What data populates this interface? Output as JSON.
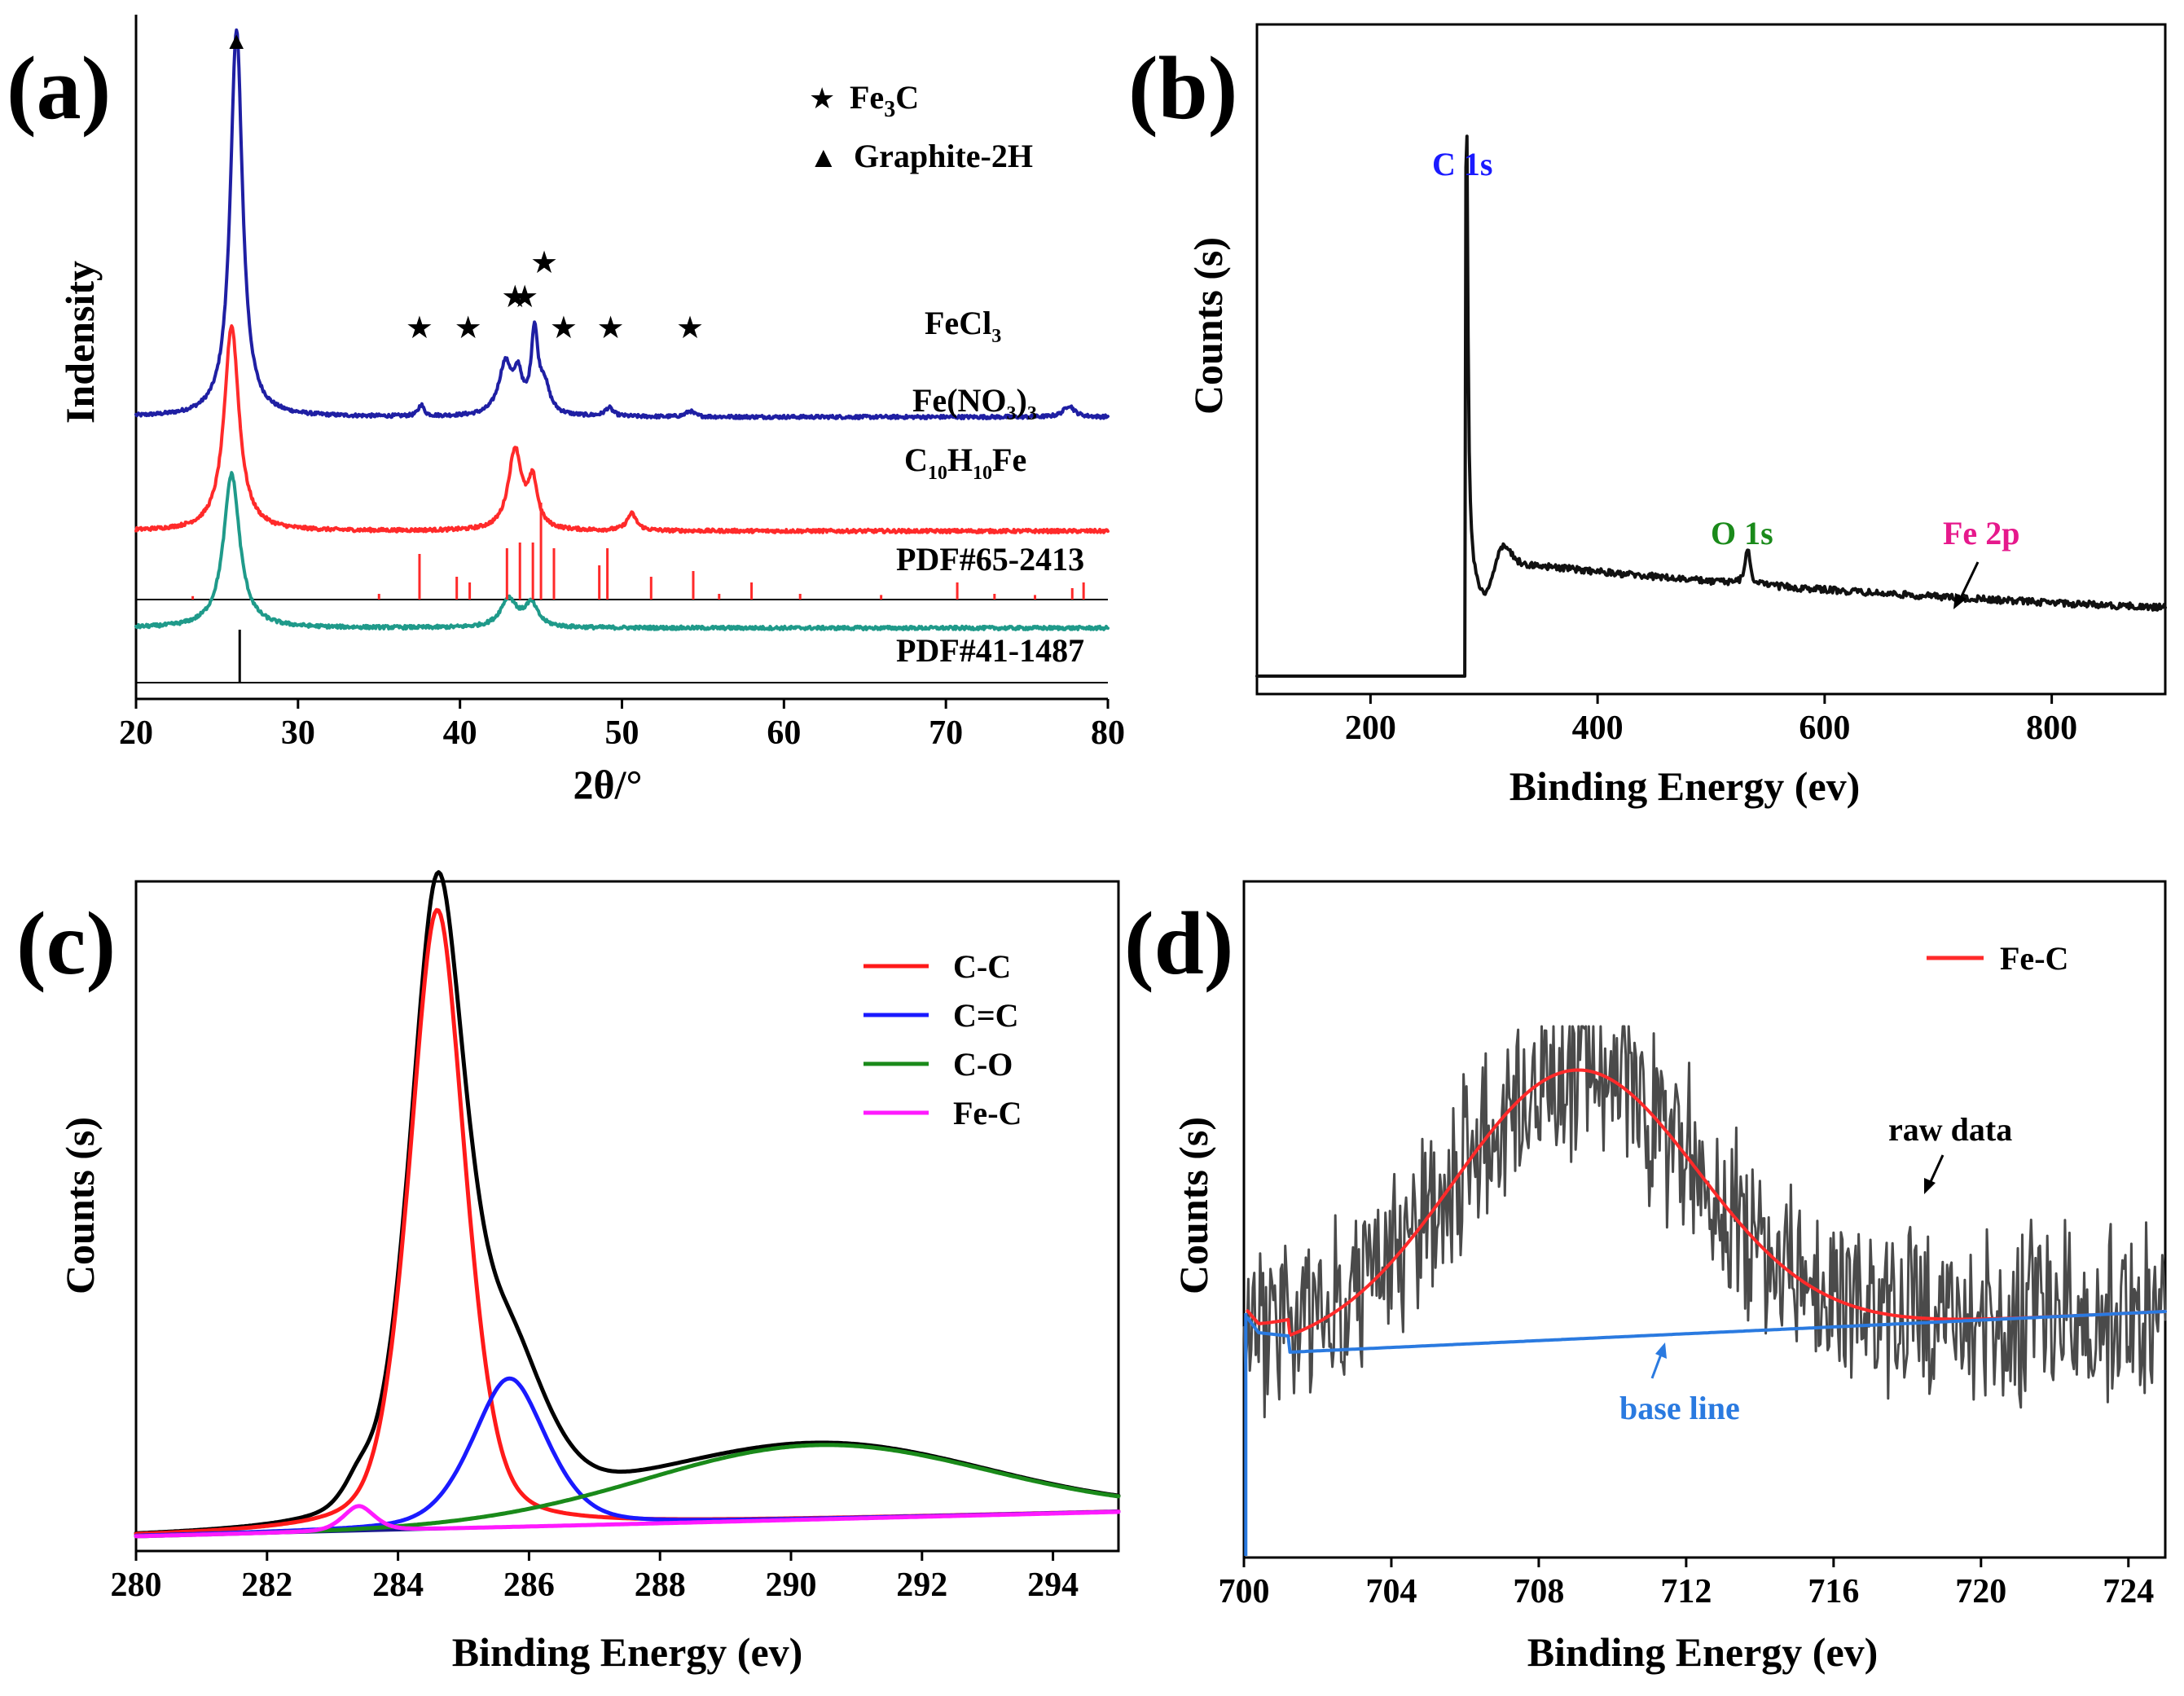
{
  "chart_data": [
    {
      "panel": "(a)",
      "type": "line",
      "xlabel": "2θ/°",
      "ylabel": "Indensity",
      "xlim": [
        20,
        80
      ],
      "xticks": [
        20,
        30,
        40,
        50,
        60,
        70,
        80
      ],
      "legend": [
        {
          "symbol": "★",
          "label": "Fe",
          "sub": "3",
          "rest": "C"
        },
        {
          "symbol": "▲",
          "label": "Graphite-2H",
          "sub": "",
          "rest": ""
        }
      ],
      "series": [
        {
          "name": "FeCl3",
          "label": {
            "pre": "FeCl",
            "sub": "3",
            "post": "",
            "sub2": ""
          },
          "color": "#1f1fa3",
          "baseline": 0.72,
          "peaks": [
            [
              26.2,
              0.68,
              0.45
            ],
            [
              42.8,
              0.09,
              0.5
            ],
            [
              43.6,
              0.06,
              0.3
            ],
            [
              44.6,
              0.14,
              0.25
            ],
            [
              45.2,
              0.05,
              0.4
            ],
            [
              37.6,
              0.02,
              0.2
            ],
            [
              49.2,
              0.015,
              0.3
            ],
            [
              54.2,
              0.01,
              0.3
            ],
            [
              77.6,
              0.02,
              0.4
            ]
          ]
        },
        {
          "name": "Fe(NO3)3",
          "label": {
            "pre": "Fe(NO",
            "sub": "3",
            "post": ")",
            "sub2": "3"
          },
          "color": "#ff2a2a",
          "baseline": 0.52,
          "peaks": [
            [
              25.9,
              0.36,
              0.55
            ],
            [
              43.4,
              0.14,
              0.5
            ],
            [
              44.5,
              0.08,
              0.35
            ],
            [
              50.6,
              0.03,
              0.35
            ]
          ]
        },
        {
          "name": "C10H10Fe",
          "label": {
            "pre": "C",
            "sub": "10",
            "post": "H",
            "sub2": "10",
            "post2": "Fe"
          },
          "color": "#1f9a8a",
          "baseline": 0.35,
          "peaks": [
            [
              25.9,
              0.27,
              0.6
            ],
            [
              43.0,
              0.05,
              0.6
            ],
            [
              44.4,
              0.04,
              0.5
            ]
          ]
        }
      ],
      "stars": [
        37.5,
        40.5,
        43.4,
        44.0,
        45.2,
        46.4,
        49.3,
        54.2
      ],
      "triangle": 26.2,
      "references": [
        {
          "name": "PDF#65-2413",
          "color": "#ff2a2a",
          "lines": [
            [
              37.5,
              0.8
            ],
            [
              39.8,
              0.4
            ],
            [
              40.6,
              0.3
            ],
            [
              42.9,
              0.9
            ],
            [
              43.7,
              1.0
            ],
            [
              44.5,
              1.0
            ],
            [
              45.0,
              1.7
            ],
            [
              45.8,
              0.9
            ],
            [
              48.6,
              0.6
            ],
            [
              49.1,
              0.9
            ],
            [
              51.8,
              0.4
            ],
            [
              54.4,
              0.5
            ],
            [
              58.0,
              0.3
            ],
            [
              70.7,
              0.3
            ],
            [
              77.8,
              0.2
            ],
            [
              78.5,
              0.3
            ],
            [
              23.5,
              0.06
            ],
            [
              35.0,
              0.1
            ],
            [
              56.0,
              0.1
            ],
            [
              61.0,
              0.1
            ],
            [
              66.0,
              0.08
            ],
            [
              73.0,
              0.1
            ],
            [
              75.5,
              0.08
            ]
          ]
        },
        {
          "name": "PDF#41-1487",
          "color": "#000000",
          "lines": [
            [
              26.4,
              1.0
            ]
          ]
        }
      ]
    },
    {
      "panel": "(b)",
      "type": "line",
      "xlabel": "Binding Energy (ev)",
      "ylabel": "Counts (s)",
      "xlim": [
        100,
        900
      ],
      "xticks": [
        200,
        400,
        600,
        800
      ],
      "annotations": [
        {
          "text": "C 1s",
          "color": "#1a1aff"
        },
        {
          "text": "O 1s",
          "color": "#1a8a1a"
        },
        {
          "text": "Fe 2p",
          "color": "#e6198c"
        }
      ],
      "peaks": [
        {
          "x": 284.6,
          "label": "C 1s"
        },
        {
          "x": 532,
          "label": "O 1s"
        },
        {
          "x": 711,
          "label": "Fe 2p"
        }
      ]
    },
    {
      "panel": "(c)",
      "type": "line",
      "xlabel": "Binding Energy (ev)",
      "ylabel": "Counts (s)",
      "xlim": [
        280,
        295
      ],
      "xticks": [
        280,
        282,
        284,
        286,
        288,
        290,
        292,
        294
      ],
      "series": [
        {
          "name": "C-C",
          "color": "#ff1a1a",
          "center": 284.6,
          "amp": 1.0,
          "width": 0.45
        },
        {
          "name": "C=C",
          "color": "#1a1aff",
          "center": 285.7,
          "amp": 0.24,
          "width": 0.6
        },
        {
          "name": "C-O",
          "color": "#1a8a1a",
          "center": 290.4,
          "amp": 0.12,
          "width": 2.6
        },
        {
          "name": "Fe-C",
          "color": "#ff1aff",
          "center": 283.4,
          "amp": 0.04,
          "width": 0.25
        }
      ],
      "legend": [
        "C-C",
        "C=C",
        "C-O",
        "Fe-C"
      ]
    },
    {
      "panel": "(d)",
      "type": "line",
      "xlabel": "Binding Energy (ev)",
      "ylabel": "Counts (s)",
      "xlim": [
        700,
        725
      ],
      "xticks": [
        700,
        704,
        708,
        712,
        716,
        720,
        724
      ],
      "legend": [
        "Fe-C"
      ],
      "series": [
        {
          "name": "raw data",
          "color": "#4a4a4a"
        },
        {
          "name": "Fe-C",
          "color": "#ff2a2a",
          "center": 709,
          "amp": 0.33,
          "width": 3.3
        },
        {
          "name": "base line",
          "color": "#2a7ae0"
        }
      ],
      "annotations": [
        {
          "text": "raw data",
          "color": "#000000"
        },
        {
          "text": "base line",
          "color": "#2a7ae0"
        }
      ]
    }
  ]
}
